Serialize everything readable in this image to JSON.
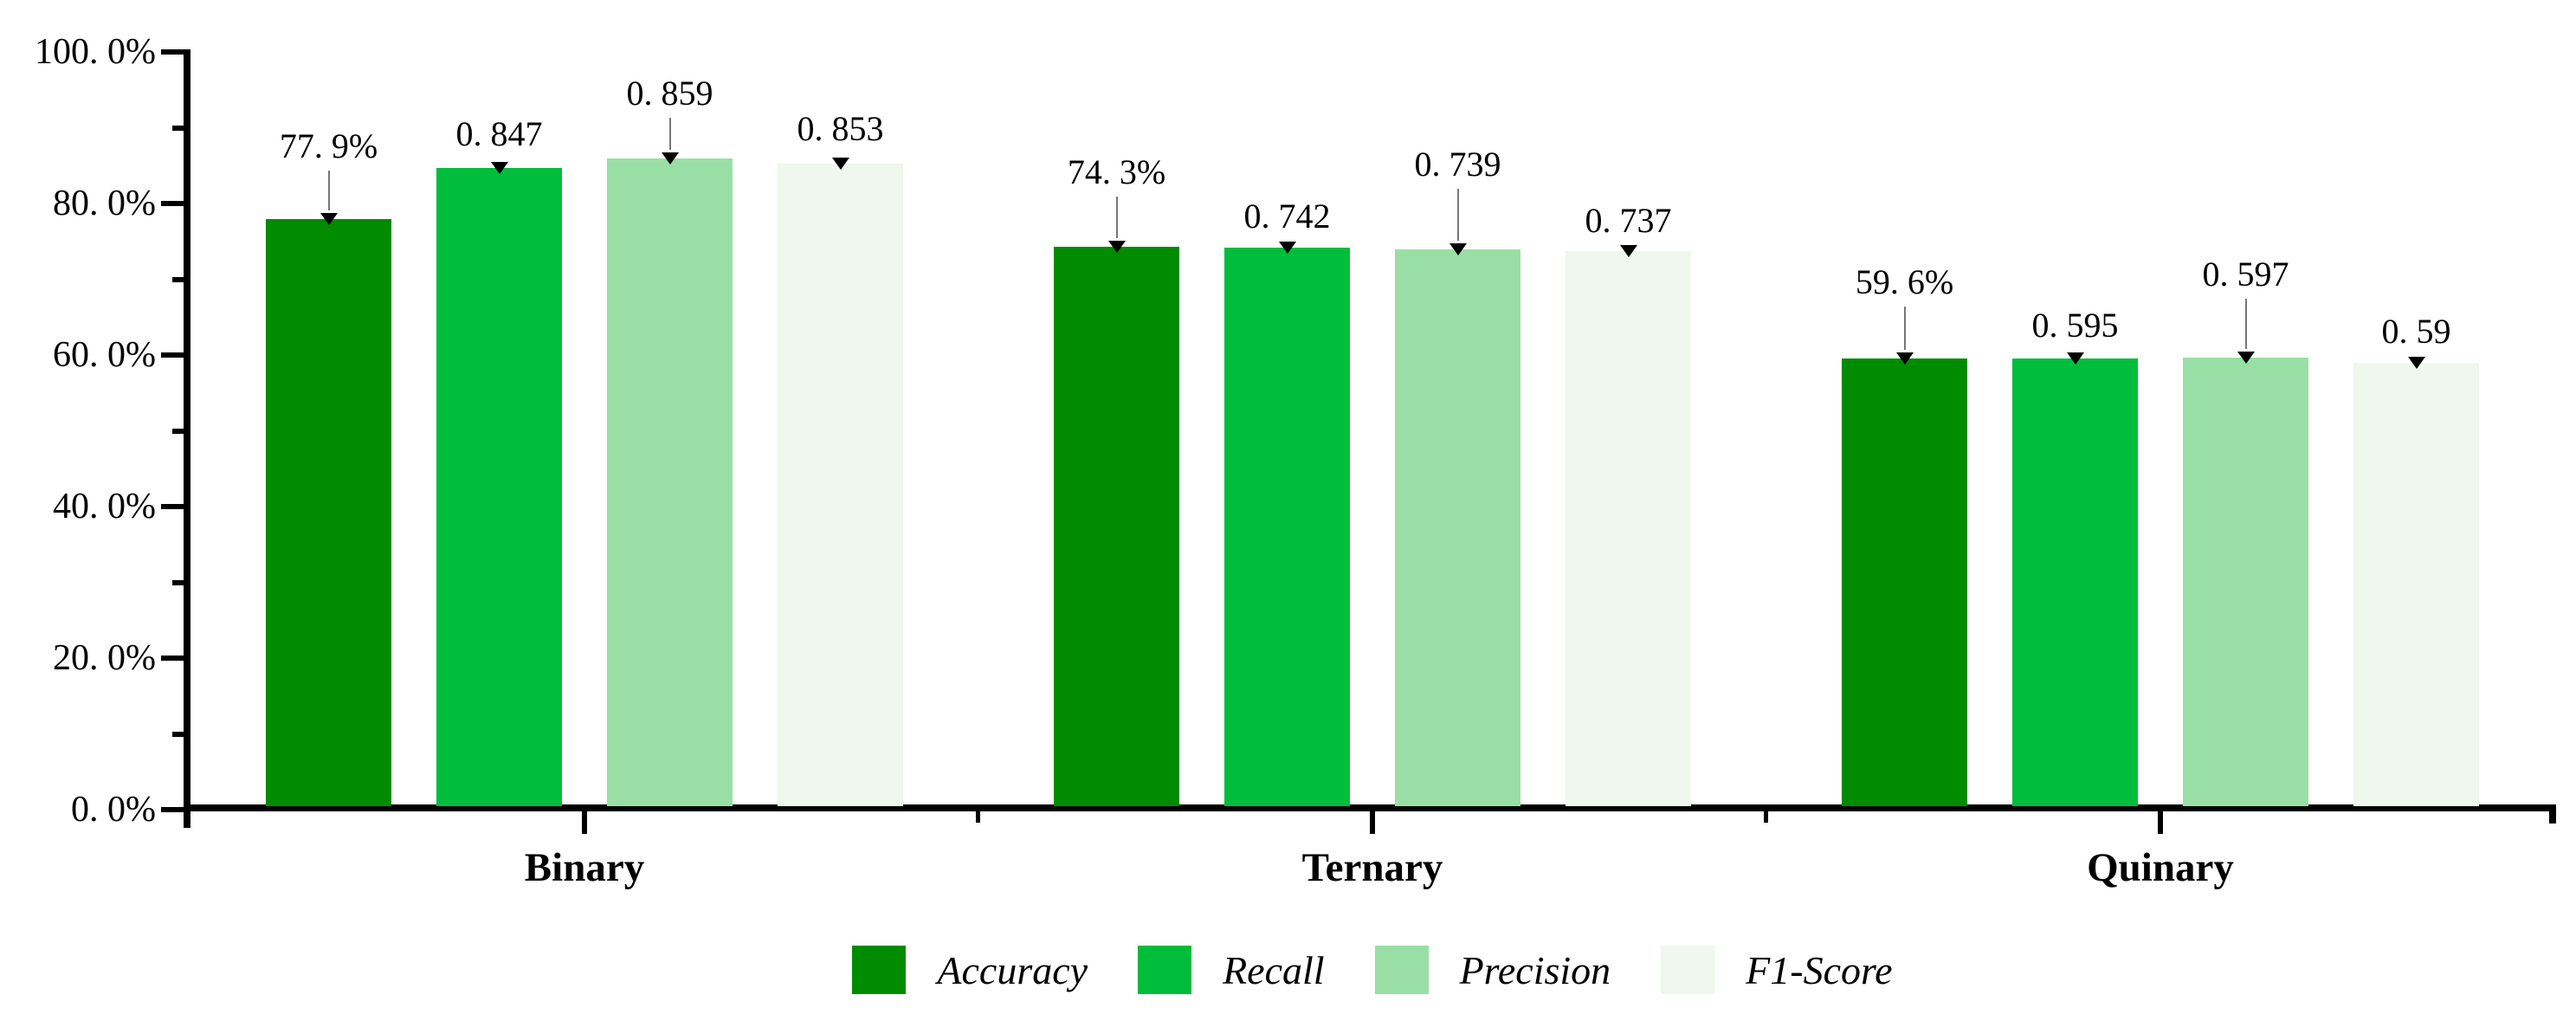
{
  "chart_data": {
    "type": "bar",
    "title": "",
    "xlabel": "",
    "ylabel": "",
    "categories": [
      "Binary",
      "Ternary",
      "Quinary"
    ],
    "series": [
      {
        "name": "Accuracy",
        "color": "#008B00",
        "values": [
          77.9,
          74.3,
          59.6
        ],
        "labels": [
          "77. 9%",
          "74. 3%",
          "59. 6%"
        ]
      },
      {
        "name": "Recall",
        "color": "#00BD3C",
        "values": [
          84.7,
          74.2,
          59.5
        ],
        "labels": [
          "0. 847",
          "0. 742",
          "0. 595"
        ]
      },
      {
        "name": "Precision",
        "color": "#99DFA5",
        "values": [
          85.9,
          73.9,
          59.7
        ],
        "labels": [
          "0. 859",
          "0. 739",
          "0. 597"
        ]
      },
      {
        "name": "F1-Score",
        "color": "#EFF7EF",
        "values": [
          85.3,
          73.7,
          59.0
        ],
        "labels": [
          "0. 853",
          "0. 737",
          "0. 59"
        ]
      }
    ],
    "ylim": [
      0,
      100
    ],
    "yticks_major": [
      0,
      20,
      40,
      60,
      80,
      100
    ],
    "yticks_minor": [
      10,
      30,
      50,
      70,
      90
    ],
    "ytick_labels": [
      "0. 0%",
      "20. 0%",
      "40. 0%",
      "60. 0%",
      "80. 0%",
      "100. 0%"
    ],
    "grid": false,
    "legend_position": "bottom",
    "annotation_marker": "down-triangle"
  }
}
